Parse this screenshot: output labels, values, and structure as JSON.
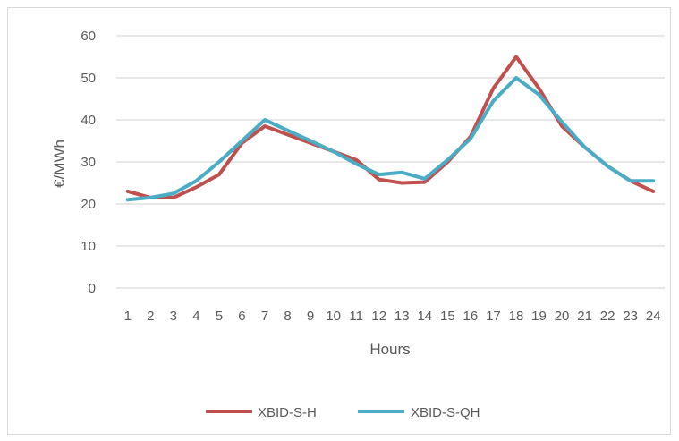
{
  "chart_data": {
    "type": "line",
    "xlabel": "Hours",
    "ylabel": "€/MWh",
    "ylim": [
      0,
      60
    ],
    "yticks": [
      0,
      10,
      20,
      30,
      40,
      50,
      60
    ],
    "categories": [
      "1",
      "2",
      "3",
      "4",
      "5",
      "6",
      "7",
      "8",
      "9",
      "10",
      "11",
      "12",
      "13",
      "14",
      "15",
      "16",
      "17",
      "18",
      "19",
      "20",
      "21",
      "22",
      "23",
      "24"
    ],
    "grid": "horizontal",
    "legend_position": "bottom",
    "series": [
      {
        "name": "XBID-S-H",
        "color": "#c0504d",
        "values": [
          23,
          21.5,
          21.5,
          24,
          27,
          34.5,
          38.5,
          36.5,
          34.5,
          32.5,
          30.5,
          25.8,
          25,
          25.2,
          30,
          36,
          47.5,
          55,
          47.5,
          38.5,
          33.5,
          29,
          25.5,
          23
        ]
      },
      {
        "name": "XBID-S-QH",
        "color": "#4bacc6",
        "values": [
          21,
          21.5,
          22.5,
          25.5,
          30,
          35,
          40,
          37.5,
          35,
          32.5,
          29.5,
          27,
          27.5,
          26,
          30.5,
          35.5,
          44.5,
          50,
          46,
          39.5,
          33.5,
          29,
          25.5,
          25.5
        ]
      }
    ]
  }
}
